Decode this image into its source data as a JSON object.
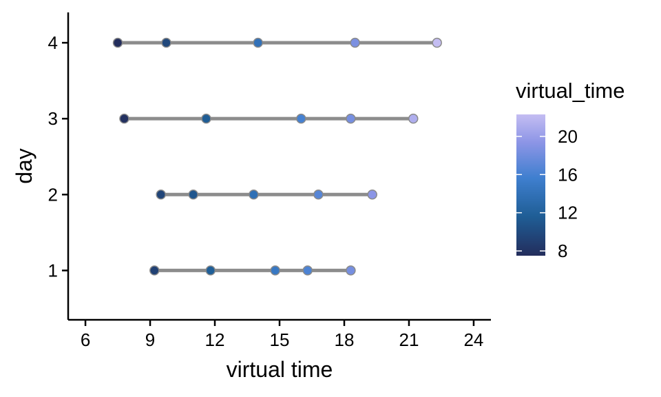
{
  "chart_data": {
    "type": "scatter",
    "xlabel": "virtual time",
    "ylabel": "day",
    "xlim": [
      5.2,
      24.8
    ],
    "ylim": [
      0.35,
      4.4
    ],
    "x_ticks": [
      6,
      9,
      12,
      15,
      18,
      21,
      24
    ],
    "y_ticks": [
      1,
      2,
      3,
      4
    ],
    "grid": false,
    "legend": {
      "title": "virtual_time",
      "position": "right",
      "type": "colorbar",
      "ticks": [
        8,
        12,
        16,
        20
      ],
      "range": [
        7.5,
        22.3
      ],
      "colors": [
        "#232d5c",
        "#1f5e96",
        "#3f7fcf",
        "#8c95e6",
        "#c4bdf2"
      ]
    },
    "series": [
      {
        "day": 1,
        "x": [
          9.2,
          11.8,
          14.8,
          16.3,
          18.3
        ]
      },
      {
        "day": 2,
        "x": [
          9.5,
          11.0,
          13.8,
          16.8,
          19.3
        ]
      },
      {
        "day": 3,
        "x": [
          7.8,
          11.6,
          16.0,
          18.3,
          21.2
        ]
      },
      {
        "day": 4,
        "x": [
          7.5,
          9.75,
          14.0,
          18.5,
          22.3
        ]
      }
    ],
    "line_color": "#8c8c8c",
    "point_stroke": "#8a8a8a"
  }
}
